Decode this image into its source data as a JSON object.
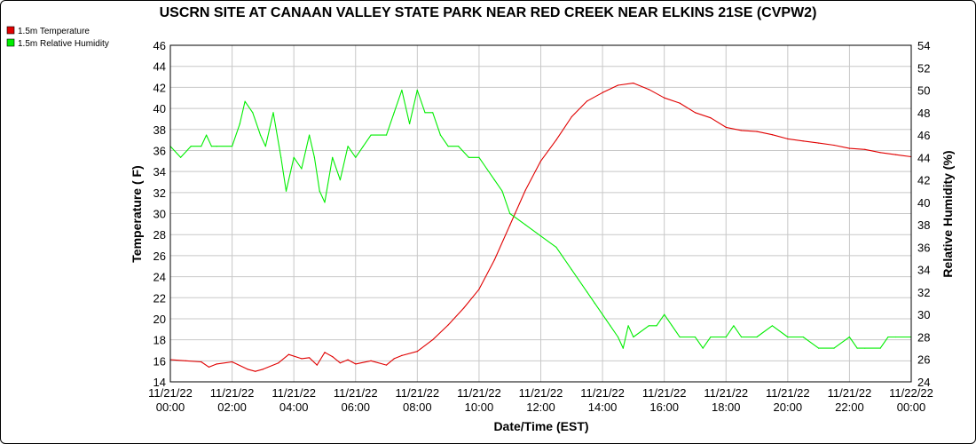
{
  "chart_data": {
    "type": "line",
    "title": "USCRN SITE AT CANAAN VALLEY STATE PARK NEAR RED CREEK NEAR ELKINS 21SE (CVPW2)",
    "xlabel": "Date/Time (EST)",
    "ylabel_left": "Temperature ( F)",
    "ylabel_right": "Relative Humidity (%)",
    "ylim_left": [
      14,
      46
    ],
    "ylim_right": [
      24,
      54
    ],
    "y_ticks_left": [
      "14",
      "16",
      "18",
      "20",
      "22",
      "24",
      "26",
      "28",
      "30",
      "32",
      "34",
      "36",
      "38",
      "40",
      "42",
      "44",
      "46"
    ],
    "y_ticks_right": [
      "24",
      "26",
      "28",
      "30",
      "32",
      "34",
      "36",
      "38",
      "40",
      "42",
      "44",
      "46",
      "48",
      "50",
      "52",
      "54"
    ],
    "x_range": [
      "11/21/22 00:00",
      "11/22/22 00:00"
    ],
    "x_tick_dates": [
      "11/21/22",
      "11/21/22",
      "11/21/22",
      "11/21/22",
      "11/21/22",
      "11/21/22",
      "11/21/22",
      "11/21/22",
      "11/21/22",
      "11/21/22",
      "11/21/22",
      "11/21/22",
      "11/21/22"
    ],
    "x_tick_times": [
      "00:00",
      "02:00",
      "04:00",
      "06:00",
      "08:00",
      "10:00",
      "12:00",
      "14:00",
      "16:00",
      "18:00",
      "20:00",
      "22:00",
      "00:00"
    ],
    "x_tick_date_last": "11/22/22",
    "grid": true,
    "legend_position": "top-left",
    "series": [
      {
        "name": "1.5m Temperature",
        "axis": "left",
        "color": "#e00000",
        "points": [
          [
            "11/21/22 00:00",
            16.1
          ],
          [
            "11/21/22 00:30",
            16.0
          ],
          [
            "11/21/22 01:00",
            15.9
          ],
          [
            "11/21/22 01:15",
            15.4
          ],
          [
            "11/21/22 01:30",
            15.7
          ],
          [
            "11/21/22 02:00",
            15.9
          ],
          [
            "11/21/22 02:30",
            15.2
          ],
          [
            "11/21/22 02:45",
            15.0
          ],
          [
            "11/21/22 03:00",
            15.2
          ],
          [
            "11/21/22 03:30",
            15.8
          ],
          [
            "11/21/22 03:50",
            16.6
          ],
          [
            "11/21/22 04:15",
            16.2
          ],
          [
            "11/21/22 04:30",
            16.3
          ],
          [
            "11/21/22 04:45",
            15.6
          ],
          [
            "11/21/22 05:00",
            16.8
          ],
          [
            "11/21/22 05:15",
            16.4
          ],
          [
            "11/21/22 05:30",
            15.8
          ],
          [
            "11/21/22 05:45",
            16.1
          ],
          [
            "11/21/22 06:00",
            15.7
          ],
          [
            "11/21/22 06:30",
            16.0
          ],
          [
            "11/21/22 07:00",
            15.6
          ],
          [
            "11/21/22 07:15",
            16.2
          ],
          [
            "11/21/22 07:30",
            16.5
          ],
          [
            "11/21/22 08:00",
            16.9
          ],
          [
            "11/21/22 08:30",
            18.0
          ],
          [
            "11/21/22 09:00",
            19.4
          ],
          [
            "11/21/22 09:30",
            21.0
          ],
          [
            "11/21/22 10:00",
            22.8
          ],
          [
            "11/21/22 10:30",
            25.6
          ],
          [
            "11/21/22 11:00",
            28.9
          ],
          [
            "11/21/22 11:30",
            32.2
          ],
          [
            "11/21/22 12:00",
            35.0
          ],
          [
            "11/21/22 12:30",
            37.0
          ],
          [
            "11/21/22 13:00",
            39.2
          ],
          [
            "11/21/22 13:30",
            40.7
          ],
          [
            "11/21/22 14:00",
            41.5
          ],
          [
            "11/21/22 14:30",
            42.2
          ],
          [
            "11/21/22 15:00",
            42.4
          ],
          [
            "11/21/22 15:30",
            41.8
          ],
          [
            "11/21/22 16:00",
            41.0
          ],
          [
            "11/21/22 16:30",
            40.5
          ],
          [
            "11/21/22 17:00",
            39.6
          ],
          [
            "11/21/22 17:30",
            39.1
          ],
          [
            "11/21/22 18:00",
            38.2
          ],
          [
            "11/21/22 18:30",
            37.9
          ],
          [
            "11/21/22 19:00",
            37.8
          ],
          [
            "11/21/22 19:30",
            37.5
          ],
          [
            "11/21/22 20:00",
            37.1
          ],
          [
            "11/21/22 20:30",
            36.9
          ],
          [
            "11/21/22 21:00",
            36.7
          ],
          [
            "11/21/22 21:30",
            36.5
          ],
          [
            "11/21/22 22:00",
            36.2
          ],
          [
            "11/21/22 22:30",
            36.1
          ],
          [
            "11/21/22 23:00",
            35.8
          ],
          [
            "11/21/22 23:30",
            35.6
          ],
          [
            "11/22/22 00:00",
            35.4
          ]
        ]
      },
      {
        "name": "1.5m Relative Humidity",
        "axis": "right",
        "color": "#00ee00",
        "points": [
          [
            "11/21/22 00:00",
            45
          ],
          [
            "11/21/22 00:20",
            44
          ],
          [
            "11/21/22 00:40",
            45
          ],
          [
            "11/21/22 01:00",
            45
          ],
          [
            "11/21/22 01:10",
            46
          ],
          [
            "11/21/22 01:20",
            45
          ],
          [
            "11/21/22 01:30",
            45
          ],
          [
            "11/21/22 02:00",
            45
          ],
          [
            "11/21/22 02:15",
            47
          ],
          [
            "11/21/22 02:25",
            49
          ],
          [
            "11/21/22 02:40",
            48
          ],
          [
            "11/21/22 02:55",
            46
          ],
          [
            "11/21/22 03:05",
            45
          ],
          [
            "11/21/22 03:20",
            48
          ],
          [
            "11/21/22 03:35",
            44
          ],
          [
            "11/21/22 03:45",
            41
          ],
          [
            "11/21/22 04:00",
            44
          ],
          [
            "11/21/22 04:15",
            43
          ],
          [
            "11/21/22 04:30",
            46
          ],
          [
            "11/21/22 04:40",
            44
          ],
          [
            "11/21/22 04:50",
            41
          ],
          [
            "11/21/22 05:00",
            40
          ],
          [
            "11/21/22 05:15",
            44
          ],
          [
            "11/21/22 05:30",
            42
          ],
          [
            "11/21/22 05:45",
            45
          ],
          [
            "11/21/22 06:00",
            44
          ],
          [
            "11/21/22 06:15",
            45
          ],
          [
            "11/21/22 06:30",
            46
          ],
          [
            "11/21/22 07:00",
            46
          ],
          [
            "11/21/22 07:15",
            48
          ],
          [
            "11/21/22 07:30",
            50
          ],
          [
            "11/21/22 07:45",
            47
          ],
          [
            "11/21/22 08:00",
            50
          ],
          [
            "11/21/22 08:15",
            48
          ],
          [
            "11/21/22 08:30",
            48
          ],
          [
            "11/21/22 08:45",
            46
          ],
          [
            "11/21/22 09:00",
            45
          ],
          [
            "11/21/22 09:20",
            45
          ],
          [
            "11/21/22 09:40",
            44
          ],
          [
            "11/21/22 10:00",
            44
          ],
          [
            "11/21/22 10:15",
            43
          ],
          [
            "11/21/22 10:30",
            42
          ],
          [
            "11/21/22 10:45",
            41
          ],
          [
            "11/21/22 11:00",
            39
          ],
          [
            "11/21/22 11:30",
            38
          ],
          [
            "11/21/22 12:00",
            37
          ],
          [
            "11/21/22 12:30",
            36
          ],
          [
            "11/21/22 13:00",
            34
          ],
          [
            "11/21/22 13:30",
            32
          ],
          [
            "11/21/22 13:45",
            31
          ],
          [
            "11/21/22 14:00",
            30
          ],
          [
            "11/21/22 14:15",
            29
          ],
          [
            "11/21/22 14:30",
            28
          ],
          [
            "11/21/22 14:40",
            27
          ],
          [
            "11/21/22 14:50",
            29
          ],
          [
            "11/21/22 15:00",
            28
          ],
          [
            "11/21/22 15:30",
            29
          ],
          [
            "11/21/22 15:45",
            29
          ],
          [
            "11/21/22 16:00",
            30
          ],
          [
            "11/21/22 16:15",
            29
          ],
          [
            "11/21/22 16:30",
            28
          ],
          [
            "11/21/22 17:00",
            28
          ],
          [
            "11/21/22 17:15",
            27
          ],
          [
            "11/21/22 17:30",
            28
          ],
          [
            "11/21/22 18:00",
            28
          ],
          [
            "11/21/22 18:15",
            29
          ],
          [
            "11/21/22 18:30",
            28
          ],
          [
            "11/21/22 19:00",
            28
          ],
          [
            "11/21/22 19:30",
            29
          ],
          [
            "11/21/22 20:00",
            28
          ],
          [
            "11/21/22 20:30",
            28
          ],
          [
            "11/21/22 21:00",
            27
          ],
          [
            "11/21/22 21:30",
            27
          ],
          [
            "11/21/22 22:00",
            28
          ],
          [
            "11/21/22 22:15",
            27
          ],
          [
            "11/21/22 22:30",
            27
          ],
          [
            "11/21/22 23:00",
            27
          ],
          [
            "11/21/22 23:15",
            28
          ],
          [
            "11/21/22 23:30",
            28
          ],
          [
            "11/22/22 00:00",
            28
          ]
        ]
      }
    ]
  }
}
